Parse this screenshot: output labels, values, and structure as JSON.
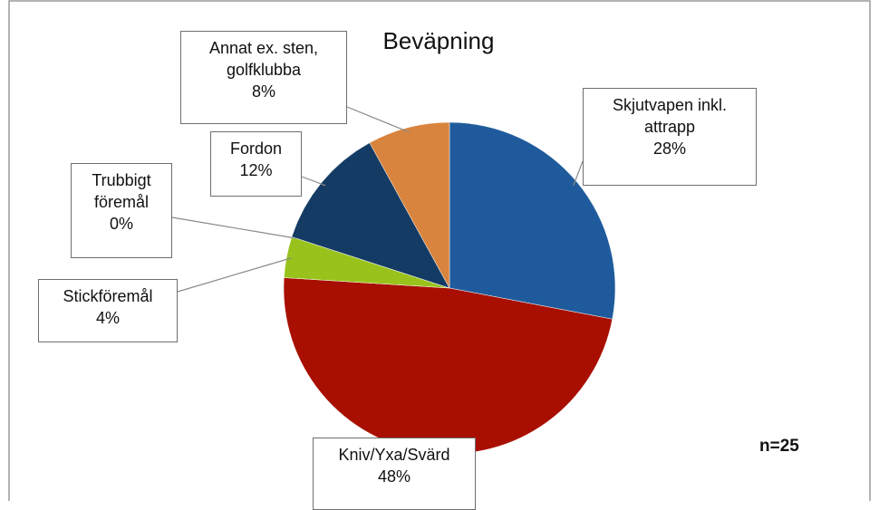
{
  "chart_data": {
    "type": "pie",
    "title": "Beväpning",
    "categories": [
      "Skjutvapen inkl. attrapp",
      "Kniv/Yxa/Svärd",
      "Stickföremål",
      "Trubbigt föremål",
      "Fordon",
      "Annat ex. sten, golfklubba"
    ],
    "values": [
      28,
      48,
      4,
      0,
      12,
      8
    ],
    "value_labels": [
      "28%",
      "48%",
      "4%",
      "0%",
      "12%",
      "8%"
    ],
    "colors": [
      "#1f5b9c",
      "#a80f00",
      "#99c31c",
      "#7a9a3a",
      "#143b64",
      "#d9843e"
    ],
    "annotation": "n=25"
  }
}
